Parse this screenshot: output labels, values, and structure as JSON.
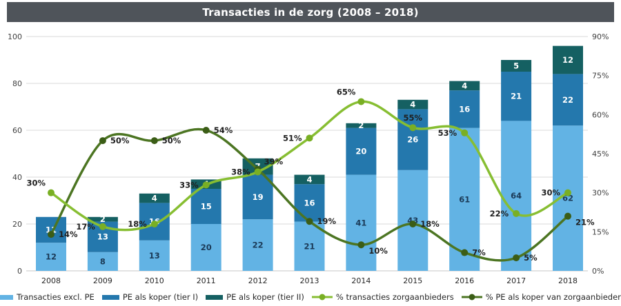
{
  "title": "Transacties in de zorg (2008 – 2018)",
  "title_bar_color": "#4F545A",
  "legend": [
    {
      "label": "Transacties excl. PE",
      "glyph": "swatch",
      "color": "#62B3E4"
    },
    {
      "label": "PE als koper (tier I)",
      "glyph": "swatch",
      "color": "#2478AD"
    },
    {
      "label": "PE als koper (tier II)",
      "glyph": "swatch",
      "color": "#156062"
    },
    {
      "label": "% transacties zorgaanbieders",
      "glyph": "line",
      "color": "#87BE32",
      "marker_color": "#79AF24"
    },
    {
      "label": "% PE als koper van zorgaanbieders",
      "glyph": "line",
      "color": "#4C7522",
      "marker_color": "#3B5D16"
    }
  ],
  "chart_data": {
    "type": "bar",
    "subtype": "stacked-bars-with-lines",
    "categories": [
      "2008",
      "2009",
      "2010",
      "2011",
      "2012",
      "2013",
      "2014",
      "2015",
      "2016",
      "2017",
      "2018"
    ],
    "bar_series": [
      {
        "name": "Transacties excl. PE",
        "color": "#62B3E4",
        "label_color": "#1B3A57",
        "values": [
          12,
          8,
          13,
          20,
          22,
          21,
          41,
          43,
          61,
          64,
          62
        ]
      },
      {
        "name": "PE als koper (tier I)",
        "color": "#2478AD",
        "label_color": "#FFFFFF",
        "values": [
          11,
          13,
          16,
          15,
          19,
          16,
          20,
          26,
          16,
          21,
          22
        ]
      },
      {
        "name": "PE als koper (tier II)",
        "color": "#156062",
        "label_color": "#FFFFFF",
        "values": [
          0,
          2,
          4,
          4,
          7,
          4,
          2,
          4,
          4,
          5,
          12
        ]
      }
    ],
    "line_series": [
      {
        "name": "% PE als koper van zorgaanbieders",
        "axis": "right",
        "color": "#4C7522",
        "marker_color": "#3B5D16",
        "values_pct": [
          14,
          50,
          50,
          54,
          39,
          19,
          10,
          18,
          7,
          5,
          21
        ],
        "label_placements": [
          "right",
          "right",
          "right",
          "right",
          "above-right",
          "right",
          "right-below",
          "right",
          "right",
          "right",
          "right-below"
        ]
      },
      {
        "name": "% transacties zorgaanbieders",
        "axis": "right",
        "color": "#87BE32",
        "marker_color": "#79AF24",
        "values_pct": [
          30,
          17,
          18,
          33,
          38,
          51,
          65,
          55,
          53,
          22,
          30
        ],
        "label_placements": [
          "above-left",
          "left",
          "left",
          "left",
          "left",
          "left",
          "above-left",
          "above",
          "left",
          "left",
          "left"
        ]
      }
    ],
    "left_axis": {
      "min": 0,
      "max": 100,
      "tick_labels": [
        "0",
        "20",
        "40",
        "60",
        "80",
        "100"
      ],
      "tick_values": [
        0,
        20,
        40,
        60,
        80,
        100
      ]
    },
    "right_axis": {
      "min": 0,
      "max": 90,
      "tick_labels": [
        "0%",
        "15%",
        "30%",
        "45%",
        "60%",
        "75%",
        "90%"
      ],
      "tick_values": [
        0,
        15,
        30,
        45,
        60,
        75,
        90
      ]
    },
    "grid": "horizontal",
    "gridline_color": "#D9D9D9",
    "legend_position": "bottom"
  }
}
